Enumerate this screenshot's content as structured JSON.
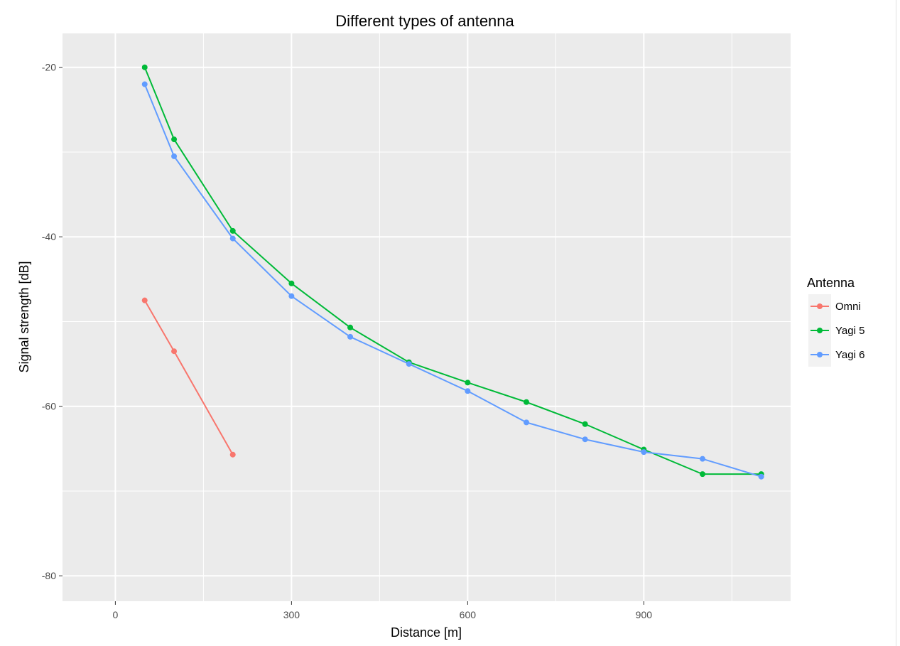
{
  "chart_data": {
    "type": "line",
    "title": "Different types of antenna",
    "xlabel": "Distance [m]",
    "ylabel": "Signal strength [dB]",
    "xlim": [
      -90,
      1150
    ],
    "ylim": [
      -83,
      -16
    ],
    "x_ticks": [
      0,
      300,
      600,
      900
    ],
    "y_ticks": [
      -20,
      -40,
      -60,
      -80
    ],
    "x_tick_labels": [
      "0",
      "300",
      "600",
      "900"
    ],
    "y_tick_labels": [
      "-20",
      "-40",
      "-60",
      "-80"
    ],
    "grid": true,
    "legend": {
      "title": "Antenna",
      "position": "right"
    },
    "series": [
      {
        "name": "Omni",
        "color": "#f8766d",
        "x": [
          50,
          100,
          200
        ],
        "y": [
          -47.5,
          -53.5,
          -65.7
        ]
      },
      {
        "name": "Yagi 5",
        "color": "#00ba38",
        "x": [
          50,
          100,
          200,
          300,
          400,
          500,
          600,
          700,
          800,
          900,
          1000,
          1100
        ],
        "y": [
          -20,
          -28.5,
          -39.3,
          -45.5,
          -50.7,
          -54.8,
          -57.2,
          -59.5,
          -62.1,
          -65.1,
          -68.0,
          -68.0
        ]
      },
      {
        "name": "Yagi 6",
        "color": "#619cff",
        "x": [
          50,
          100,
          200,
          300,
          400,
          500,
          600,
          700,
          800,
          900,
          1000,
          1100
        ],
        "y": [
          -22,
          -30.5,
          -40.2,
          -47.0,
          -51.8,
          -55.0,
          -58.2,
          -61.9,
          -63.9,
          -65.4,
          -66.2,
          -68.3
        ]
      }
    ]
  }
}
